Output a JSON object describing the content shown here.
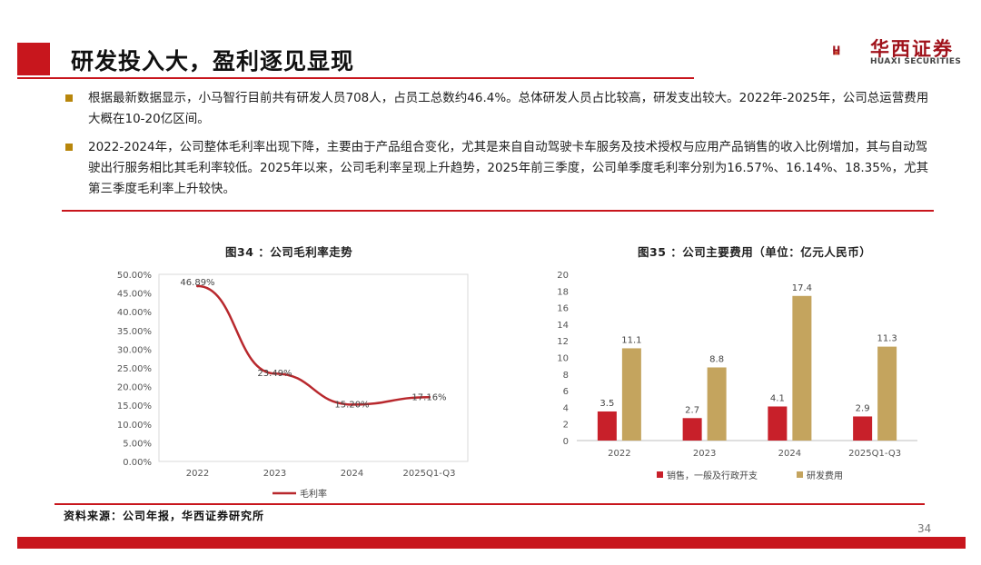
{
  "header": {
    "title": "研发投入大，盈利逐见显现",
    "logo_cn": "华西证券",
    "logo_en": "HUAXI SECURITIES"
  },
  "bullets": [
    "根据最新数据显示，小马智行目前共有研发人员708人，占员工总数约46.4%。总体研发人员占比较高，研发支出较大。2022年-2025年，公司总运营费用大概在10-20亿区间。",
    "2022-2024年，公司整体毛利率出现下降，主要由于产品组合变化，尤其是来自自动驾驶卡车服务及技术授权与应用产品销售的收入比例增加，其与自动驾驶出行服务相比其毛利率较低。2025年以来，公司毛利率呈现上升趋势，2025年前三季度，公司单季度毛利率分别为16.57%、16.14%、18.35%，尤其第三季度毛利率上升较快。"
  ],
  "chart_data": [
    {
      "type": "line",
      "title": "图34 ：公司毛利率走势",
      "categories": [
        "2022",
        "2023",
        "2024",
        "2025Q1-Q3"
      ],
      "series": [
        {
          "name": "毛利率",
          "values": [
            46.89,
            23.49,
            15.2,
            17.16
          ],
          "labels": [
            "46.89%",
            "23.49%",
            "15.20%",
            "17.16%"
          ],
          "color": "#b8282d"
        }
      ],
      "ylim": [
        0,
        50
      ],
      "yticks": [
        "0.00%",
        "5.00%",
        "10.00%",
        "15.00%",
        "20.00%",
        "25.00%",
        "30.00%",
        "35.00%",
        "40.00%",
        "45.00%",
        "50.00%"
      ],
      "legend": "bottom"
    },
    {
      "type": "bar",
      "title": "图35 ：公司主要费用（单位：亿元人民币）",
      "categories": [
        "2022",
        "2023",
        "2024",
        "2025Q1-Q3"
      ],
      "series": [
        {
          "name": "销售，一般及行政开支",
          "values": [
            3.5,
            2.7,
            4.1,
            2.9
          ],
          "color": "#c8202a"
        },
        {
          "name": "研发费用",
          "values": [
            11.1,
            8.8,
            17.4,
            11.3
          ],
          "color": "#c4a45e"
        }
      ],
      "ylim": [
        0,
        20
      ],
      "yticks": [
        "0",
        "2",
        "4",
        "6",
        "8",
        "10",
        "12",
        "14",
        "16",
        "18",
        "20"
      ],
      "legend": "bottom"
    }
  ],
  "footer": {
    "source": "资料来源：公司年报，华西证券研究所",
    "page": "34"
  }
}
